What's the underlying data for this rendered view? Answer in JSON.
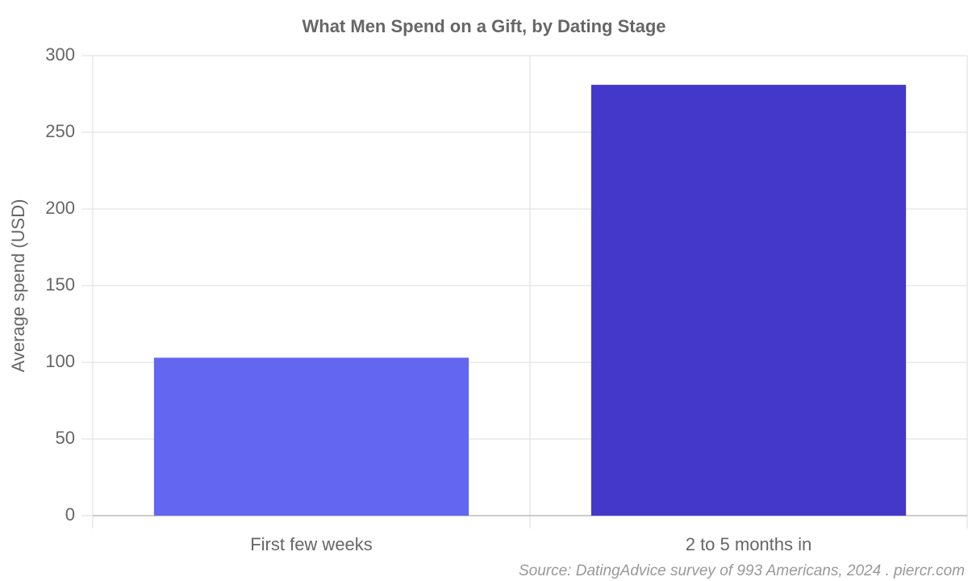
{
  "chart_data": {
    "type": "bar",
    "title": "What Men Spend on a Gift, by Dating Stage",
    "y_label": "Average spend (USD)",
    "categories": [
      "First few weeks",
      "2 to 5 months in"
    ],
    "values": [
      103,
      281
    ],
    "colors": [
      "#6366f1",
      "#4338ca"
    ],
    "ylim": [
      0,
      300
    ],
    "yticks": [
      0,
      50,
      100,
      150,
      200,
      250,
      300
    ],
    "grid": true,
    "source": "Source: DatingAdvice survey of 993 Americans, 2024 . piercr.com"
  }
}
